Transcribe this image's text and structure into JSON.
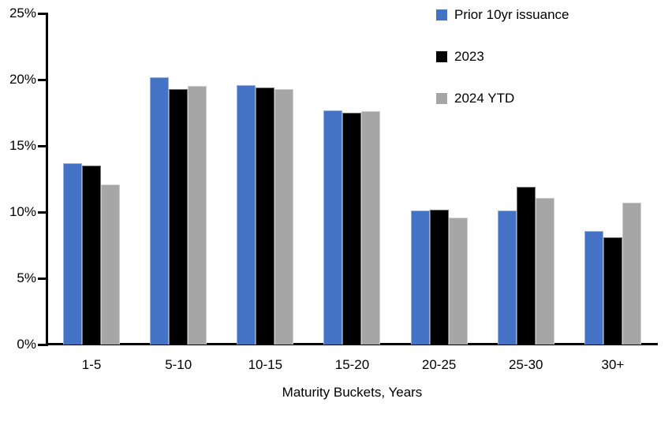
{
  "chart_data": {
    "type": "bar",
    "title": "",
    "xlabel": "Maturity Buckets, Years",
    "ylabel": "",
    "ylim": [
      0,
      25
    ],
    "yticks": [
      0,
      5,
      10,
      15,
      20,
      25
    ],
    "ytick_suffix": "%",
    "grid": false,
    "legend_position": "top-right",
    "categories": [
      "1-5",
      "5-10",
      "10-15",
      "15-20",
      "20-25",
      "25-30",
      "30+"
    ],
    "series": [
      {
        "name": "Prior 10yr issuance",
        "color": "#4472C4",
        "values": [
          13.7,
          20.2,
          19.6,
          17.7,
          10.1,
          10.1,
          8.6
        ]
      },
      {
        "name": "2023",
        "color": "#000000",
        "values": [
          13.5,
          19.3,
          19.4,
          17.5,
          10.2,
          11.9,
          8.1
        ]
      },
      {
        "name": "2024 YTD",
        "color": "#A6A6A6",
        "values": [
          12.1,
          19.5,
          19.3,
          17.6,
          9.6,
          11.1,
          10.7
        ]
      }
    ]
  }
}
